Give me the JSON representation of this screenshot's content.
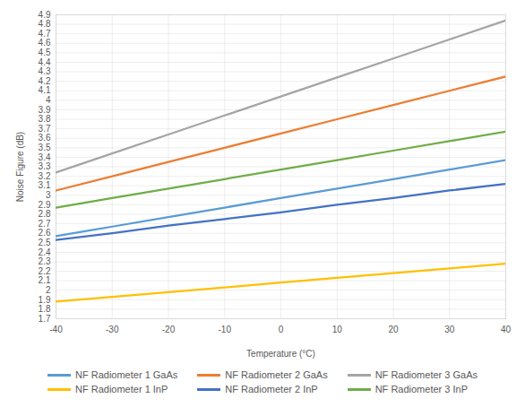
{
  "chart_data": {
    "type": "line",
    "x_label": "Temperature (°C)",
    "y_label": "Noise Figure (dB)",
    "x": [
      -40,
      -30,
      -20,
      -10,
      0,
      10,
      20,
      30,
      40
    ],
    "series": [
      {
        "name": "NF Radiometer 1 GaAs",
        "color": "#5b9bd5",
        "values": [
          2.57,
          2.67,
          2.77,
          2.87,
          2.97,
          3.07,
          3.17,
          3.27,
          3.37
        ]
      },
      {
        "name": "NF Radiometer 2 GaAs",
        "color": "#ed7d31",
        "values": [
          3.05,
          3.2,
          3.35,
          3.5,
          3.65,
          3.8,
          3.95,
          4.1,
          4.25
        ]
      },
      {
        "name": "NF Radiometer 3 GaAs",
        "color": "#a5a5a5",
        "values": [
          3.24,
          3.44,
          3.64,
          3.84,
          4.04,
          4.24,
          4.44,
          4.64,
          4.84
        ]
      },
      {
        "name": "NF Radiometer 1 InP",
        "color": "#ffc000",
        "values": [
          1.88,
          1.93,
          1.98,
          2.03,
          2.08,
          2.13,
          2.18,
          2.23,
          2.28
        ]
      },
      {
        "name": "NF Radiometer 2 InP",
        "color": "#4472c4",
        "values": [
          2.53,
          2.6,
          2.68,
          2.75,
          2.82,
          2.9,
          2.97,
          3.05,
          3.12
        ]
      },
      {
        "name": "NF Radiometer 3 InP",
        "color": "#70ad47",
        "values": [
          2.87,
          2.97,
          3.07,
          3.17,
          3.27,
          3.37,
          3.47,
          3.57,
          3.67
        ]
      }
    ],
    "xlim": [
      -40,
      40
    ],
    "xticks": [
      -40,
      -30,
      -20,
      -10,
      0,
      10,
      20,
      30,
      40
    ],
    "ylim": [
      1.7,
      4.9
    ],
    "yticks": [
      1.7,
      1.8,
      1.9,
      2,
      2.1,
      2.2,
      2.3,
      2.4,
      2.5,
      2.6,
      2.7,
      2.8,
      2.9,
      3,
      3.1,
      3.2,
      3.3,
      3.4,
      3.5,
      3.6,
      3.7,
      3.8,
      3.9,
      4,
      4.1,
      4.2,
      4.3,
      4.4,
      4.5,
      4.6,
      4.7,
      4.8,
      4.9
    ],
    "grid": true,
    "legend": "bottom"
  }
}
